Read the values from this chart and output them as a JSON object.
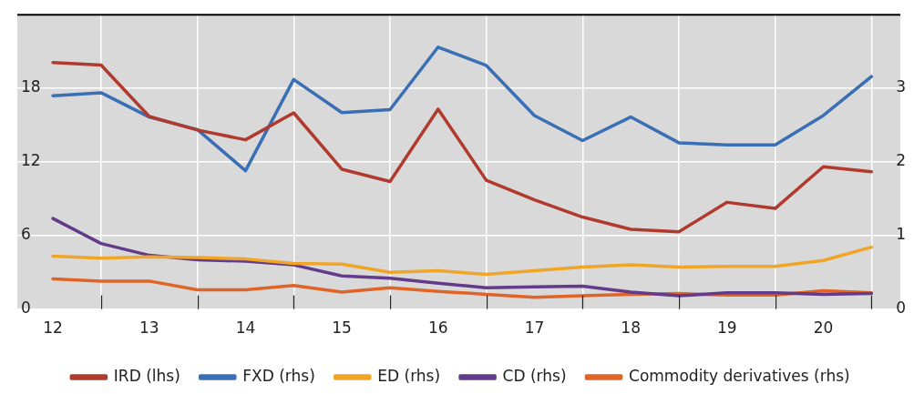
{
  "chart_data": {
    "type": "line",
    "x": [
      12,
      12.5,
      13,
      13.5,
      14,
      14.5,
      15,
      15.5,
      16,
      16.5,
      17,
      17.5,
      18,
      18.5,
      19,
      19.5,
      20,
      20.5
    ],
    "series": [
      {
        "name": "IRD (lhs)",
        "color": "#b03a2e",
        "values": [
          20.1,
          19.9,
          15.7,
          14.6,
          13.8,
          16.0,
          11.4,
          10.4,
          16.3,
          10.5,
          8.9,
          7.5,
          6.5,
          6.3,
          8.7,
          8.2,
          11.6,
          11.2
        ]
      },
      {
        "name": "FXD (rhs)",
        "color": "#3a6fb5",
        "axis": "y2",
        "values": [
          2.9,
          2.94,
          2.61,
          2.44,
          1.88,
          3.12,
          2.67,
          2.71,
          3.56,
          3.31,
          2.63,
          2.29,
          2.61,
          2.26,
          2.23,
          2.23,
          2.63,
          3.16
        ]
      },
      {
        "name": "ED (rhs)",
        "color": "#f0a526",
        "axis": "y2",
        "values": [
          0.72,
          0.69,
          0.71,
          0.7,
          0.68,
          0.62,
          0.61,
          0.5,
          0.52,
          0.47,
          0.52,
          0.57,
          0.6,
          0.57,
          0.58,
          0.58,
          0.66,
          0.84
        ]
      },
      {
        "name": "CD (rhs)",
        "color": "#633b8b",
        "axis": "y2",
        "values": [
          1.23,
          0.89,
          0.73,
          0.67,
          0.65,
          0.6,
          0.45,
          0.42,
          0.35,
          0.29,
          0.3,
          0.31,
          0.23,
          0.18,
          0.22,
          0.22,
          0.2,
          0.21
        ]
      },
      {
        "name": "Commodity derivatives (rhs)",
        "color": "#e06327",
        "axis": "y2",
        "values": [
          0.41,
          0.38,
          0.38,
          0.26,
          0.26,
          0.32,
          0.23,
          0.29,
          0.24,
          0.2,
          0.16,
          0.18,
          0.2,
          0.21,
          0.19,
          0.19,
          0.25,
          0.22
        ]
      }
    ],
    "xlim": [
      11.63,
      20.8
    ],
    "xticks": [
      12,
      {
        "value": 12.5,
        "label": null
      },
      13,
      {
        "value": 13.5,
        "label": null
      },
      14,
      {
        "value": 14.5,
        "label": null
      },
      15,
      {
        "value": 15.5,
        "label": null
      },
      16,
      {
        "value": 16.5,
        "label": null
      },
      17,
      {
        "value": 17.5,
        "label": null
      },
      18,
      {
        "value": 18.5,
        "label": null
      },
      19,
      {
        "value": 19.5,
        "label": null
      },
      20,
      {
        "value": 20.5,
        "label": null
      }
    ],
    "ylim": [
      0,
      24
    ],
    "yticks": [
      0,
      6,
      12,
      18
    ],
    "y2lim": [
      0,
      4
    ],
    "y2ticks": [
      0,
      1,
      2,
      3
    ],
    "grid": true,
    "legend": "bottom"
  }
}
